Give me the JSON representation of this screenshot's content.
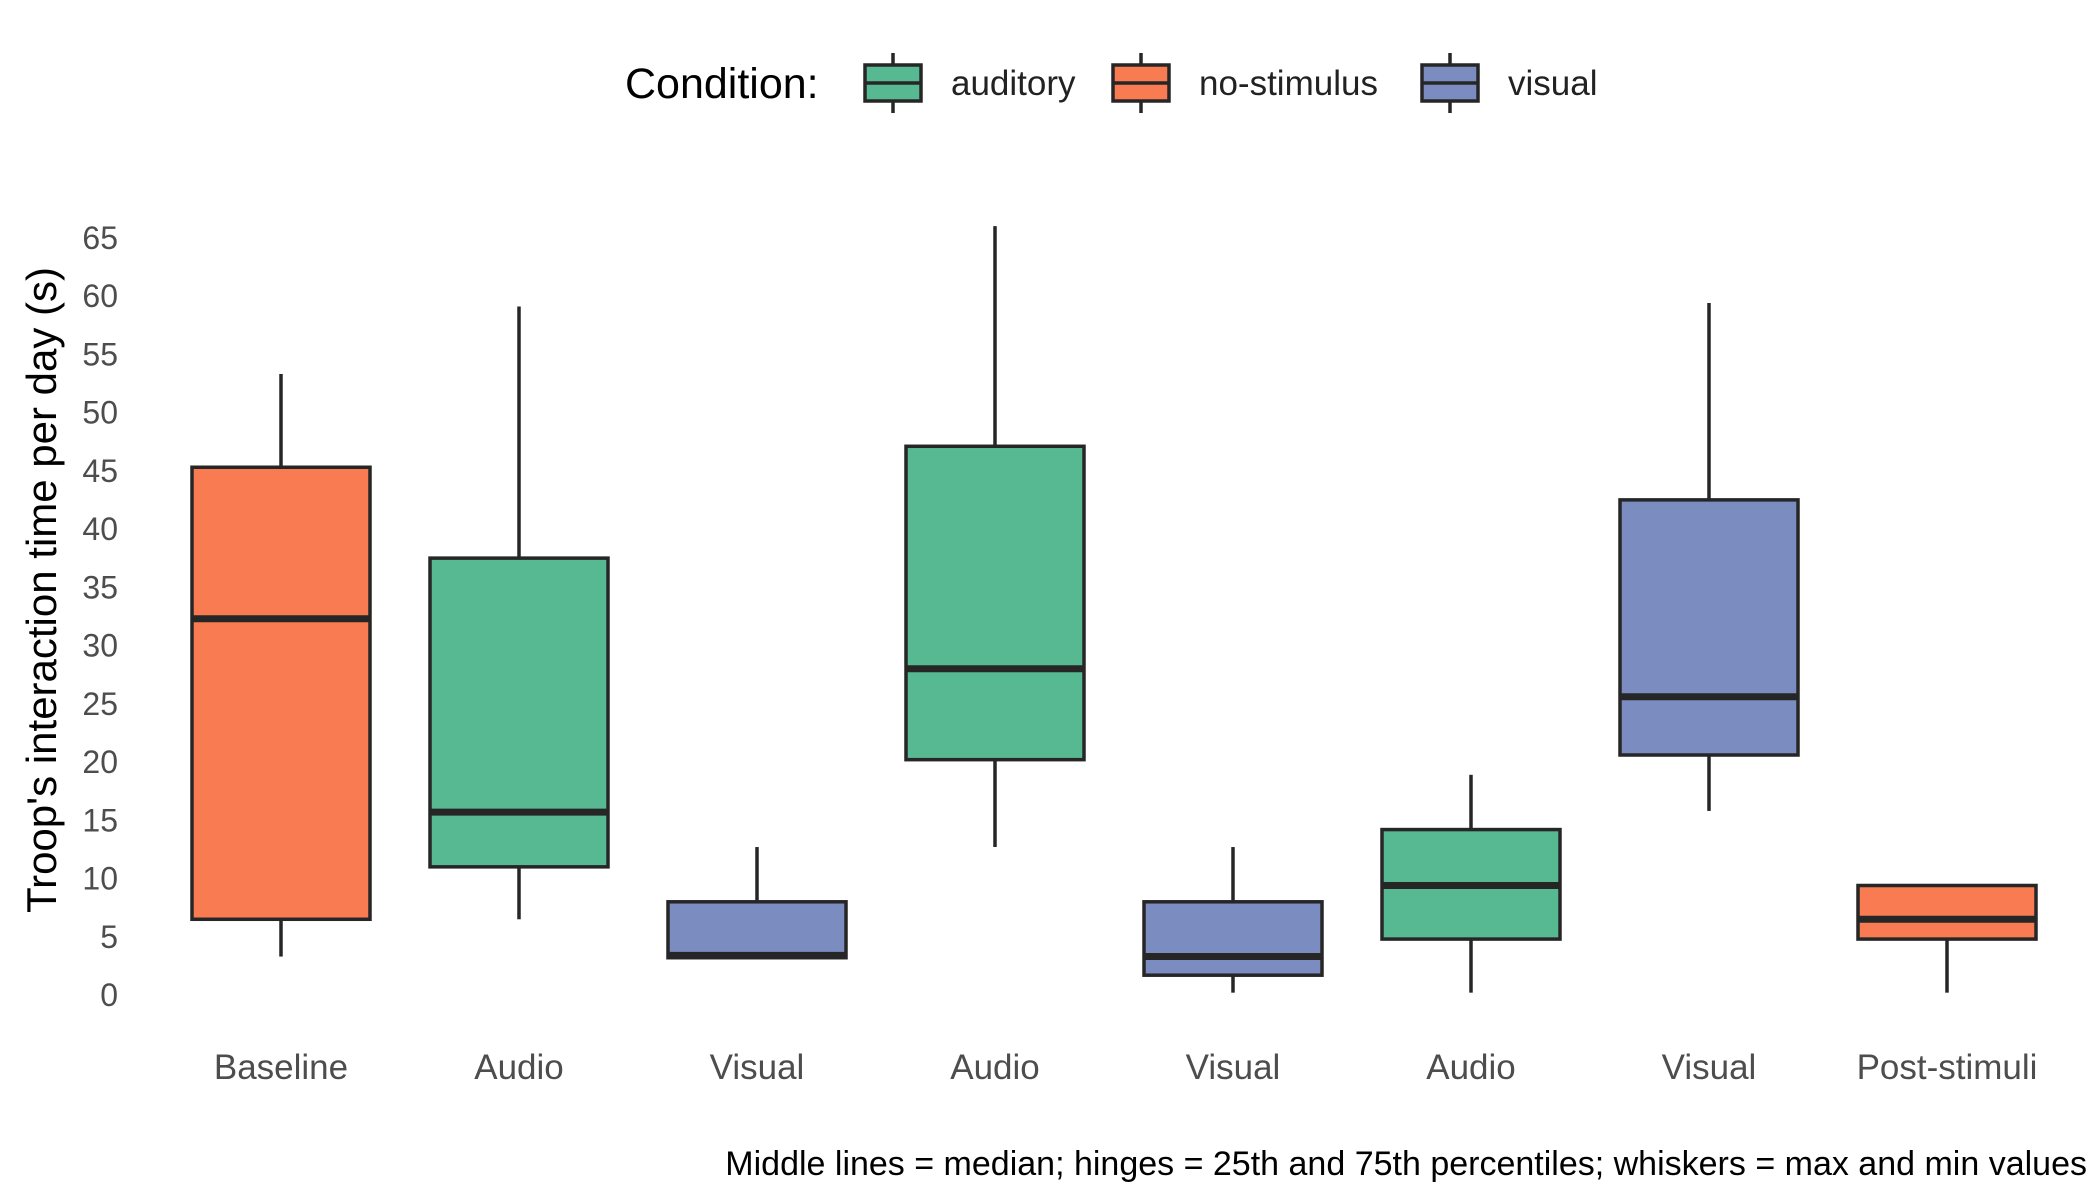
{
  "chart_data": {
    "type": "box",
    "ylabel": "Troop's interaction time per day (s)",
    "xlabel": "",
    "ylim": [
      0,
      66
    ],
    "yticks": [
      0,
      5,
      10,
      15,
      20,
      25,
      30,
      35,
      40,
      45,
      50,
      55,
      60,
      65
    ],
    "grid": false,
    "legend": {
      "title": "Condition:",
      "placement": "top",
      "entries": [
        {
          "name": "auditory",
          "color": "#56b992"
        },
        {
          "name": "no-stimulus",
          "color": "#f97b52"
        },
        {
          "name": "visual",
          "color": "#7b8cc0"
        }
      ]
    },
    "caption": "Middle lines = median; hinges = 25th and 75th percentiles; whiskers = max and min values",
    "categories": [
      "Baseline",
      "Audio",
      "Visual",
      "Audio",
      "Visual",
      "Audio",
      "Visual",
      "Post-stimuli"
    ],
    "boxes": [
      {
        "label": "Baseline",
        "condition": "no-stimulus",
        "min": 3.3,
        "q1": 6.5,
        "median": 32.3,
        "q3": 45.3,
        "max": 53.3
      },
      {
        "label": "Audio",
        "condition": "auditory",
        "min": 6.5,
        "q1": 11.0,
        "median": 15.7,
        "q3": 37.5,
        "max": 59.1
      },
      {
        "label": "Visual",
        "condition": "visual",
        "min": 3.2,
        "q1": 3.2,
        "median": 3.4,
        "q3": 8.0,
        "max": 12.7
      },
      {
        "label": "Audio",
        "condition": "auditory",
        "min": 12.7,
        "q1": 20.2,
        "median": 28.0,
        "q3": 47.1,
        "max": 66.0
      },
      {
        "label": "Visual",
        "condition": "visual",
        "min": 0.2,
        "q1": 1.7,
        "median": 3.3,
        "q3": 8.0,
        "max": 12.7
      },
      {
        "label": "Audio",
        "condition": "auditory",
        "min": 0.2,
        "q1": 4.8,
        "median": 9.4,
        "q3": 14.2,
        "max": 18.9
      },
      {
        "label": "Visual",
        "condition": "visual",
        "min": 15.8,
        "q1": 20.6,
        "median": 25.6,
        "q3": 42.5,
        "max": 59.4
      },
      {
        "label": "Post-stimuli",
        "condition": "no-stimulus",
        "min": 0.2,
        "q1": 4.8,
        "median": 6.5,
        "q3": 9.4,
        "max": 9.4
      }
    ]
  }
}
